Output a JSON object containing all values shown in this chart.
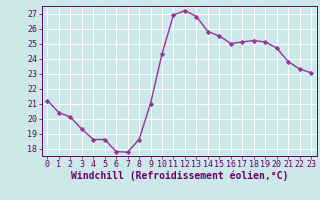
{
  "x": [
    0,
    1,
    2,
    3,
    4,
    5,
    6,
    7,
    8,
    9,
    10,
    11,
    12,
    13,
    14,
    15,
    16,
    17,
    18,
    19,
    20,
    21,
    22,
    23
  ],
  "y": [
    21.2,
    20.4,
    20.1,
    19.3,
    18.6,
    18.6,
    17.8,
    17.75,
    18.6,
    21.0,
    24.3,
    26.9,
    27.2,
    26.8,
    25.8,
    25.5,
    25.0,
    25.1,
    25.2,
    25.1,
    24.7,
    23.8,
    23.3,
    23.05
  ],
  "line_color": "#993399",
  "marker": "D",
  "marker_size": 2.2,
  "linewidth": 1.0,
  "xlabel": "Windchill (Refroidissement éolien,°C)",
  "xlabel_fontsize": 7,
  "background_color": "#cce8e8",
  "grid_color": "#ffffff",
  "ylim": [
    17.5,
    27.5
  ],
  "yticks": [
    18,
    19,
    20,
    21,
    22,
    23,
    24,
    25,
    26,
    27
  ],
  "xticks": [
    0,
    1,
    2,
    3,
    4,
    5,
    6,
    7,
    8,
    9,
    10,
    11,
    12,
    13,
    14,
    15,
    16,
    17,
    18,
    19,
    20,
    21,
    22,
    23
  ],
  "tick_fontsize": 6,
  "tick_color": "#660066",
  "label_color": "#660066",
  "spine_color": "#660066"
}
